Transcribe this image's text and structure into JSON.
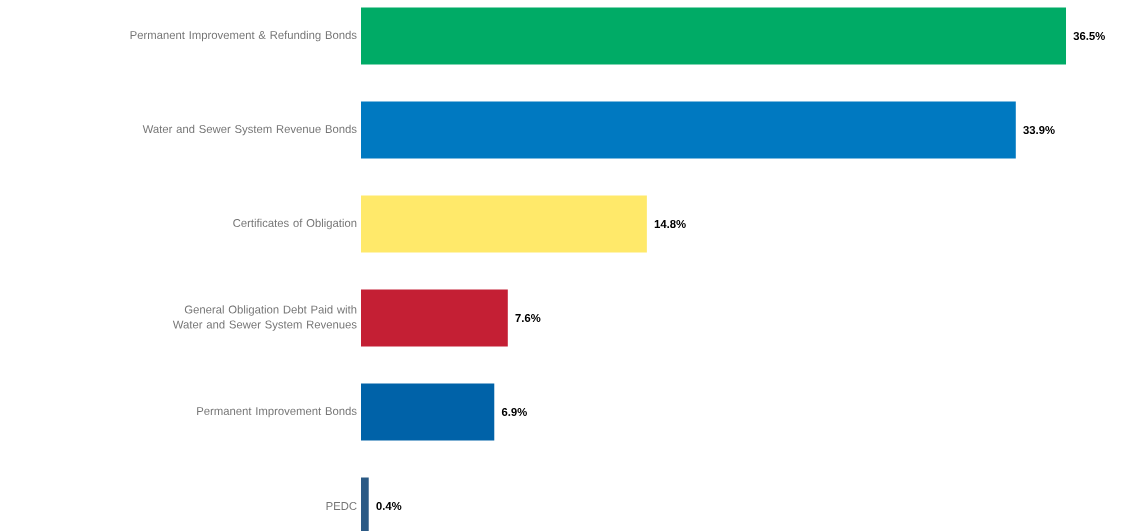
{
  "chart_data": {
    "type": "bar",
    "orientation": "horizontal",
    "categories": [
      "Permanent Improvement & Refunding Bonds",
      "Water and Sewer System Revenue Bonds",
      "Certificates of Obligation",
      "General Obligation Debt Paid with Water and Sewer System Revenues",
      "Permanent Improvement Bonds",
      "PEDC"
    ],
    "values": [
      36.5,
      33.9,
      14.8,
      7.6,
      6.9,
      0.4
    ],
    "colors": [
      "#00ab66",
      "#0079c1",
      "#ffe96a",
      "#c41f34",
      "#0062a8",
      "#2b5a85"
    ],
    "value_labels": [
      "36.5%",
      "33.9%",
      "14.8%",
      "7.6%",
      "6.9%",
      "0.4%"
    ]
  }
}
